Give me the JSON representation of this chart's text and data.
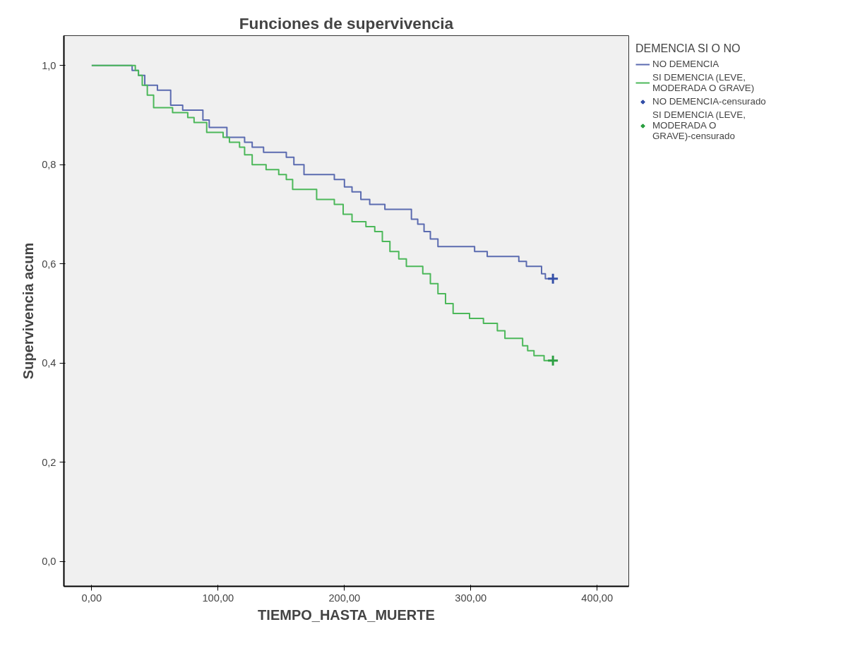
{
  "chart_data": {
    "type": "step",
    "title": "Funciones de supervivencia",
    "xlabel": "TIEMPO_HASTA_MUERTE",
    "ylabel": "Supervivencia acum",
    "legend_title": "DEMENCIA SI O NO",
    "xlim": [
      -22,
      425
    ],
    "ylim": [
      -0.05,
      1.06
    ],
    "xticks": [
      {
        "value": 0,
        "label": "0,00"
      },
      {
        "value": 100,
        "label": "100,00"
      },
      {
        "value": 200,
        "label": "200,00"
      },
      {
        "value": 300,
        "label": "300,00"
      },
      {
        "value": 400,
        "label": "400,00"
      }
    ],
    "yticks": [
      {
        "value": 0,
        "label": "0,0"
      },
      {
        "value": 0.2,
        "label": "0,2"
      },
      {
        "value": 0.4,
        "label": "0,4"
      },
      {
        "value": 0.6,
        "label": "0,6"
      },
      {
        "value": 0.8,
        "label": "0,8"
      },
      {
        "value": 1.0,
        "label": "1,0"
      }
    ],
    "grid": false,
    "legend": "top right",
    "series": [
      {
        "name": "NO DEMENCIA",
        "color": "#5b6bb0",
        "x": [
          0,
          32,
          37,
          42,
          52,
          62.5,
          72,
          88,
          93,
          107,
          121,
          127,
          136,
          154,
          160,
          168,
          192,
          200,
          206,
          213,
          220,
          232,
          253,
          258,
          263,
          268,
          274,
          303,
          313,
          338,
          344,
          356,
          359,
          365
        ],
        "values": [
          1,
          0.99,
          0.98,
          0.96,
          0.95,
          0.92,
          0.91,
          0.89,
          0.875,
          0.855,
          0.845,
          0.835,
          0.825,
          0.815,
          0.8,
          0.78,
          0.77,
          0.755,
          0.745,
          0.73,
          0.72,
          0.71,
          0.69,
          0.68,
          0.665,
          0.65,
          0.635,
          0.625,
          0.615,
          0.605,
          0.595,
          0.58,
          0.57,
          0.57
        ]
      },
      {
        "name": "SI DEMENCIA (LEVE, MODERADA O GRAVE)",
        "color": "#4cb85a",
        "x": [
          0,
          34.5,
          37,
          40,
          44,
          49,
          64,
          76,
          81,
          91,
          104,
          109,
          117,
          121,
          127,
          138,
          148,
          154,
          159,
          178,
          192,
          199,
          206,
          217,
          224,
          230,
          236,
          243,
          249,
          262,
          268,
          274,
          280,
          286,
          299,
          310,
          321,
          327,
          341,
          345,
          350,
          358,
          365
        ],
        "values": [
          1,
          0.99,
          0.98,
          0.96,
          0.94,
          0.915,
          0.905,
          0.895,
          0.885,
          0.865,
          0.855,
          0.845,
          0.835,
          0.82,
          0.8,
          0.79,
          0.78,
          0.77,
          0.75,
          0.73,
          0.72,
          0.7,
          0.685,
          0.675,
          0.665,
          0.645,
          0.625,
          0.61,
          0.595,
          0.58,
          0.56,
          0.54,
          0.52,
          0.5,
          0.49,
          0.48,
          0.465,
          0.45,
          0.435,
          0.425,
          0.415,
          0.405,
          0.405
        ]
      },
      {
        "name": "NO DEMENCIA-censurado",
        "type": "scatter",
        "marker": "cross",
        "color": "#3550a8",
        "x": [
          365
        ],
        "values": [
          0.57
        ]
      },
      {
        "name": "SI DEMENCIA (LEVE, MODERADA O GRAVE)-censurado",
        "type": "scatter",
        "marker": "cross",
        "color": "#2ea043",
        "x": [
          365
        ],
        "values": [
          0.405
        ]
      }
    ]
  }
}
